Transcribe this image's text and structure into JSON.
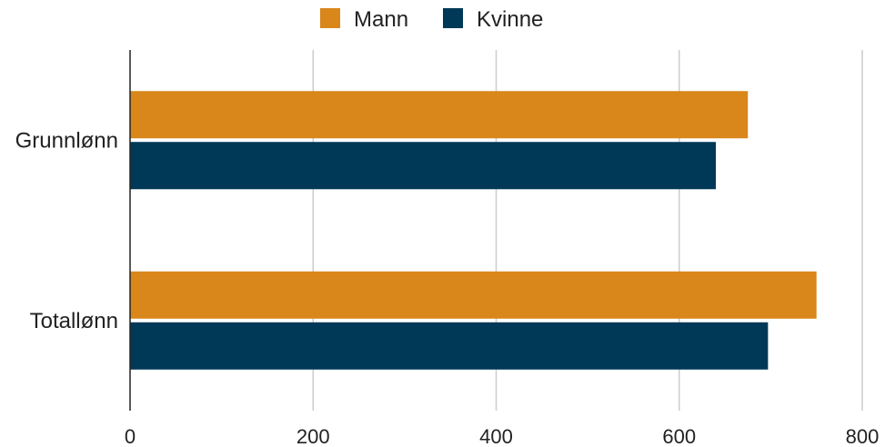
{
  "chart_data": {
    "type": "bar",
    "orientation": "horizontal",
    "categories": [
      "Grunnlønn",
      "Totallønn"
    ],
    "series": [
      {
        "name": "Mann",
        "color": "#d9861a",
        "values": [
          675,
          750
        ]
      },
      {
        "name": "Kvinne",
        "color": "#003857",
        "values": [
          640,
          697
        ]
      }
    ],
    "xlim": [
      0,
      800
    ],
    "xticks": [
      "0",
      "200",
      "400",
      "600",
      "800"
    ],
    "grid": true,
    "legend_position": "top-center"
  }
}
